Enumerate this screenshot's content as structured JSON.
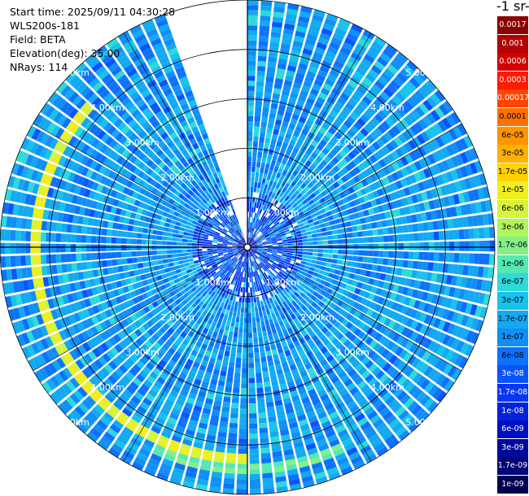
{
  "header": {
    "start_time": "Start time: 2025/09/11 04:30:28",
    "instrument": "WLS200s-181",
    "field": "Field: BETA",
    "elevation": "Elevation(deg): 35.00",
    "nrays": "NRays: 114"
  },
  "colorbar": {
    "title_fragment": "-1 sr-",
    "labels": [
      "0.0017",
      "0.001",
      "0.0006",
      "0.0003",
      "0.00017",
      "0.0001",
      "6e-05",
      "3e-05",
      "1.7e-05",
      "1e-05",
      "6e-06",
      "3e-06",
      "1.7e-06",
      "1e-06",
      "6e-07",
      "3e-07",
      "1.7e-07",
      "1e-07",
      "6e-08",
      "3e-08",
      "1.7e-08",
      "1e-08",
      "6e-09",
      "3e-09",
      "1.7e-09",
      "1e-09"
    ],
    "colors": [
      "#8b0000",
      "#b30000",
      "#d40000",
      "#ff1a00",
      "#ff4500",
      "#ff7000",
      "#ff9400",
      "#ffb000",
      "#ffd200",
      "#f0ee1c",
      "#d7f43c",
      "#b0f55e",
      "#84f088",
      "#55e8b3",
      "#2ed9d8",
      "#17c2ec",
      "#13a9f3",
      "#118ef8",
      "#0d72fb",
      "#0a55fb",
      "#0637f2",
      "#0422dc",
      "#0010c0",
      "#00089c",
      "#000478",
      "#000050"
    ]
  },
  "chart_data": {
    "type": "heatmap",
    "projection": "polar-ppi",
    "field": "BETA",
    "units_fragment": "-1 sr-",
    "elevation_deg": 35.0,
    "n_rays": 114,
    "range_max_km": 5.0,
    "data_gap_azimuth_deg": [
      -22,
      0
    ],
    "range_labels": [
      "1.00km",
      "2.00km",
      "3.00km",
      "4.00km",
      "5.00km"
    ],
    "range_rings_km": [
      1,
      2,
      3,
      4,
      5
    ],
    "features": [
      {
        "description": "aerosol arc",
        "range_km": 4.25,
        "azimuth_start_deg": 180,
        "azimuth_end_deg": 310,
        "value_level": "1e-05"
      },
      {
        "description": "aerosol arc",
        "range_km": 4.45,
        "azimuth_start_deg": 152,
        "azimuth_end_deg": 205,
        "value_level": "6e-07"
      }
    ]
  }
}
